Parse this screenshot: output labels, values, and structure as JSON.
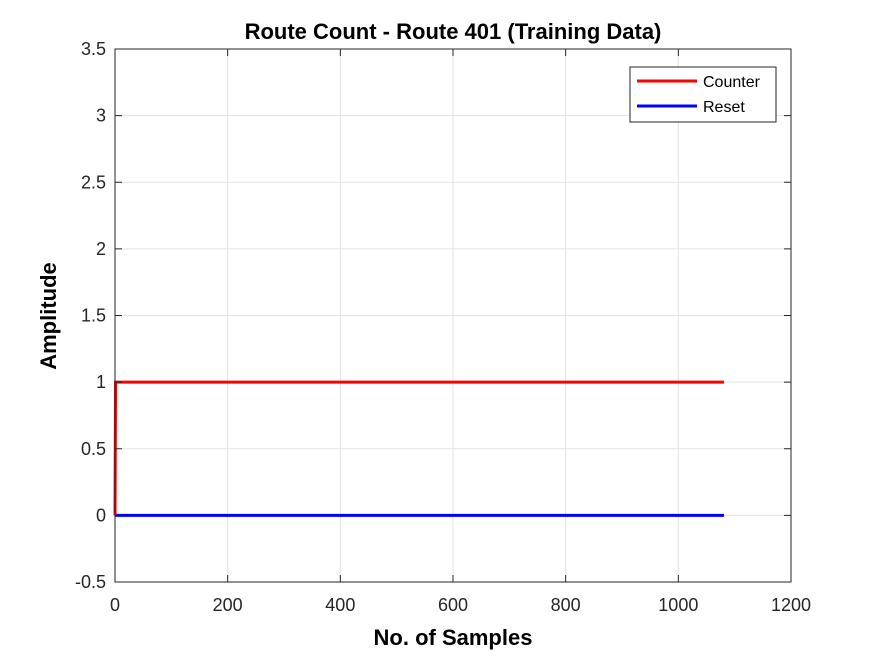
{
  "chart_data": {
    "type": "line",
    "title": "Route Count - Route 401 (Training Data)",
    "xlabel": "No. of Samples",
    "ylabel": "Amplitude",
    "xlim": [
      0,
      1200
    ],
    "ylim": [
      -0.5,
      3.5
    ],
    "xticks": [
      0,
      200,
      400,
      600,
      800,
      1000,
      1200
    ],
    "yticks": [
      -0.5,
      0,
      0.5,
      1,
      1.5,
      2,
      2.5,
      3,
      3.5
    ],
    "xtick_labels": [
      "0",
      "200",
      "400",
      "600",
      "800",
      "1000",
      "1200"
    ],
    "ytick_labels": [
      "-0.5",
      "0",
      "0.5",
      "1",
      "1.5",
      "2",
      "2.5",
      "3",
      "3.5"
    ],
    "grid": true,
    "legend_position": "top-right",
    "series": [
      {
        "name": "Counter",
        "color": "#ff0000",
        "x": [
          0,
          1,
          1081
        ],
        "y": [
          0,
          1,
          1
        ]
      },
      {
        "name": "Reset",
        "color": "#0000ff",
        "x": [
          0,
          1081
        ],
        "y": [
          0,
          0
        ]
      }
    ]
  }
}
